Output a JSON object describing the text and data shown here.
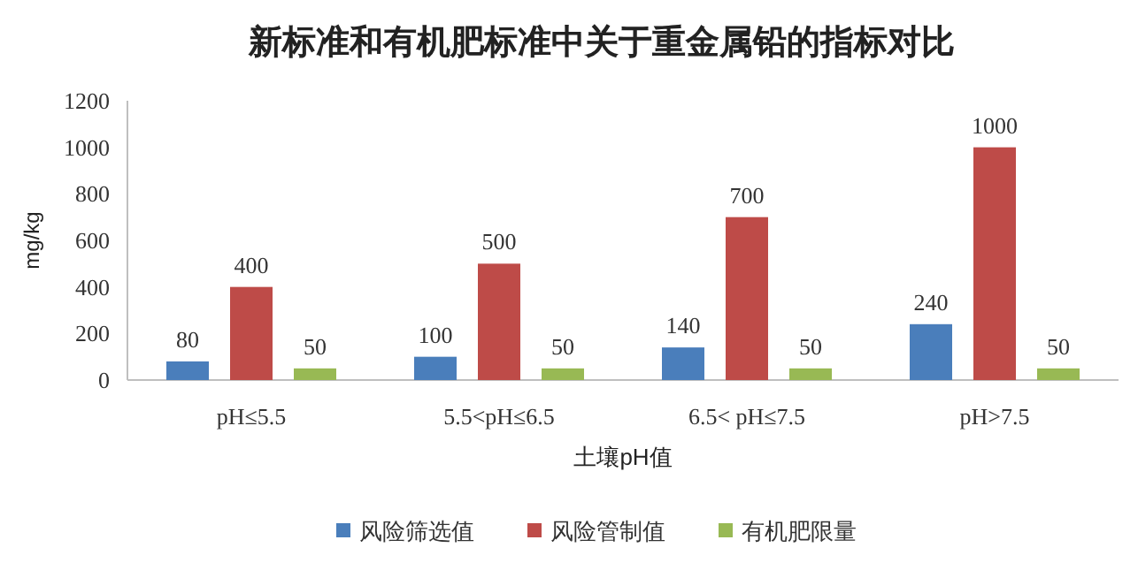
{
  "chart_data": {
    "type": "bar",
    "title": "新标准和有机肥标准中关于重金属铅的指标对比",
    "xlabel": "土壤pH值",
    "ylabel": "mg/kg",
    "categories": [
      "pH≤5.5",
      "5.5<pH≤6.5",
      "6.5< pH≤7.5",
      "pH>7.5"
    ],
    "series": [
      {
        "name": "风险筛选值",
        "color": "#4a7ebb",
        "values": [
          80,
          100,
          140,
          240
        ]
      },
      {
        "name": "风险管制值",
        "color": "#be4b48",
        "values": [
          400,
          500,
          700,
          1000
        ]
      },
      {
        "name": "有机肥限量",
        "color": "#98b954",
        "values": [
          50,
          50,
          50,
          50
        ]
      }
    ],
    "ylim": [
      0,
      1200
    ],
    "yticks": [
      0,
      200,
      400,
      600,
      800,
      1000,
      1200
    ],
    "data_labels": true,
    "legend": "bottom"
  }
}
